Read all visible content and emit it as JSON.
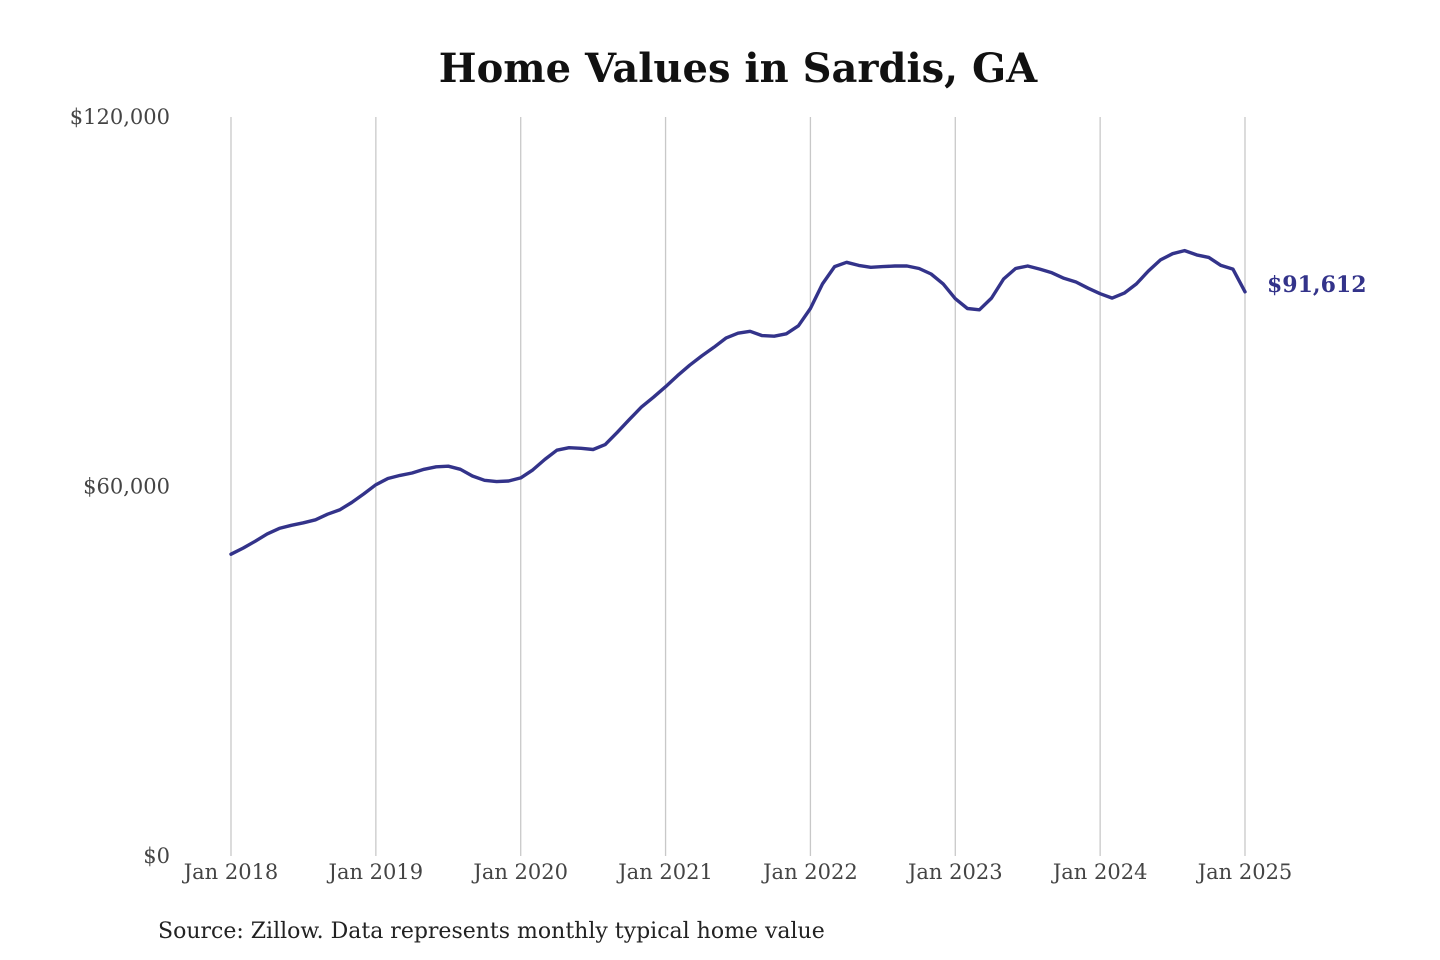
{
  "chart_data": {
    "type": "line",
    "title": "Home Values in Sardis, GA",
    "xlabel": "",
    "ylabel": "",
    "xlim": [
      "2018-01",
      "2025-01"
    ],
    "ylim": [
      0,
      120000
    ],
    "x_ticks": [
      "Jan 2018",
      "Jan 2019",
      "Jan 2020",
      "Jan 2021",
      "Jan 2022",
      "Jan 2023",
      "Jan 2024",
      "Jan 2025"
    ],
    "y_ticks": [
      "$0",
      "$60,000",
      "$120,000"
    ],
    "y_tick_values": [
      0,
      60000,
      120000
    ],
    "grid": "vertical lines at x ticks",
    "line_color": "#33338a",
    "end_label": "$91,612",
    "series": [
      {
        "x": [
          "2018-01",
          "2018-02",
          "2018-03",
          "2018-04",
          "2018-05",
          "2018-06",
          "2018-07",
          "2018-08",
          "2018-09",
          "2018-10",
          "2018-11",
          "2018-12",
          "2019-01",
          "2019-02",
          "2019-03",
          "2019-04",
          "2019-05",
          "2019-06",
          "2019-07",
          "2019-08",
          "2019-09",
          "2019-10",
          "2019-11",
          "2019-12",
          "2020-01",
          "2020-02",
          "2020-03",
          "2020-04",
          "2020-05",
          "2020-06",
          "2020-07",
          "2020-08",
          "2020-09",
          "2020-10",
          "2020-11",
          "2020-12",
          "2021-01",
          "2021-02",
          "2021-03",
          "2021-04",
          "2021-05",
          "2021-06",
          "2021-07",
          "2021-08",
          "2021-09",
          "2021-10",
          "2021-11",
          "2021-12",
          "2022-01",
          "2022-02",
          "2022-03",
          "2022-04",
          "2022-05",
          "2022-06",
          "2022-07",
          "2022-08",
          "2022-09",
          "2022-10",
          "2022-11",
          "2022-12",
          "2023-01",
          "2023-02",
          "2023-03",
          "2023-04",
          "2023-05",
          "2023-06",
          "2023-07",
          "2023-08",
          "2023-09",
          "2023-10",
          "2023-11",
          "2023-12",
          "2024-01",
          "2024-02",
          "2024-03",
          "2024-04",
          "2024-05",
          "2024-06",
          "2024-07",
          "2024-08",
          "2024-09",
          "2024-10",
          "2024-11",
          "2024-12",
          "2025-01"
        ],
        "values": [
          49000,
          50000,
          51100,
          52300,
          53200,
          53700,
          54100,
          54600,
          55500,
          56200,
          57400,
          58800,
          60300,
          61300,
          61800,
          62200,
          62800,
          63200,
          63300,
          62800,
          61700,
          61000,
          60800,
          60900,
          61400,
          62700,
          64400,
          65900,
          66300,
          66200,
          66000,
          66800,
          68800,
          70900,
          72900,
          74500,
          76200,
          78000,
          79700,
          81200,
          82600,
          84100,
          84900,
          85200,
          84500,
          84400,
          84800,
          86100,
          88900,
          92900,
          95700,
          96400,
          95900,
          95600,
          95700,
          95800,
          95800,
          95400,
          94500,
          92900,
          90500,
          88900,
          88700,
          90600,
          93700,
          95400,
          95800,
          95300,
          94700,
          93800,
          93200,
          92200,
          91300,
          90600,
          91400,
          92900,
          95000,
          96800,
          97800,
          98300,
          97600,
          97200,
          95900,
          95300,
          91612
        ]
      }
    ]
  },
  "source_note": "Source: Zillow. Data represents monthly typical home value"
}
